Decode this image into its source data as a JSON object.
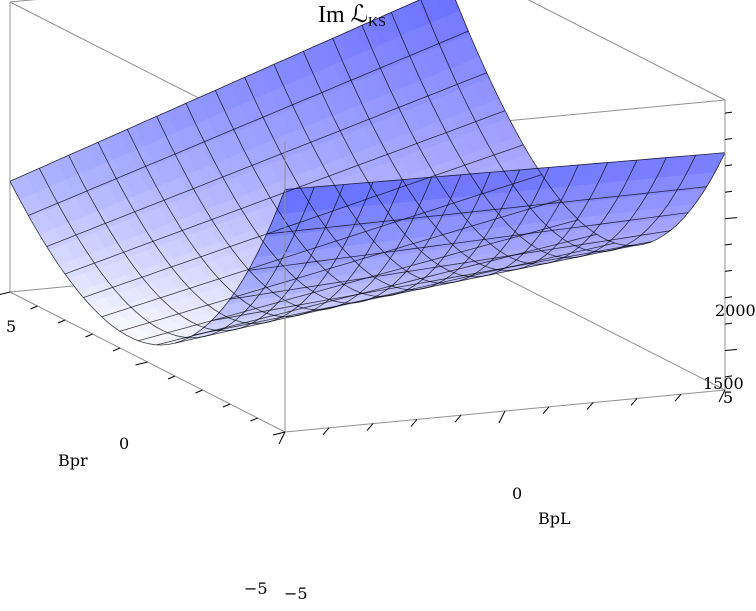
{
  "chart_data": {
    "type": "surface3d",
    "title": "Im ℒ",
    "title_subscript": "KS",
    "xlabel": "BpL",
    "ylabel": "Bpr",
    "zlabel": "",
    "x_range": [
      -5,
      5
    ],
    "y_range": [
      -5,
      5
    ],
    "z_range": [
      1350,
      2450
    ],
    "x_ticks": [
      {
        "value": -5,
        "label": "−5"
      },
      {
        "value": 0,
        "label": "0"
      },
      {
        "value": 5,
        "label": "5"
      }
    ],
    "y_ticks": [
      {
        "value": -5,
        "label": "−5"
      },
      {
        "value": 0,
        "label": "0"
      },
      {
        "value": 5,
        "label": "5"
      }
    ],
    "z_ticks": [
      {
        "value": 1500,
        "label": "1500"
      },
      {
        "value": 2000,
        "label": "2000"
      }
    ],
    "surface_approx": "z(BpL,Bpr) ≈ 1560 + 28·BpL + 24·Bpr² − 0.8·Bpr³ + 6·BpL·Bpr",
    "sample_values": [
      {
        "BpL": -5,
        "Bpr": -5,
        "z": 2000
      },
      {
        "BpL": -5,
        "Bpr": 0,
        "z": 1420
      },
      {
        "BpL": -5,
        "Bpr": 5,
        "z": 2200
      },
      {
        "BpL": 5,
        "Bpr": -5,
        "z": 2150
      },
      {
        "BpL": 5,
        "Bpr": 0,
        "z": 1700
      },
      {
        "BpL": 5,
        "Bpr": 5,
        "z": 2400
      }
    ],
    "mesh_lines": 15,
    "colors": {
      "surface_high": "#5560ff",
      "surface_low": "#ffffff",
      "surface_right": "#b7a8ff",
      "mesh": "#000000",
      "box": "#909090"
    }
  }
}
